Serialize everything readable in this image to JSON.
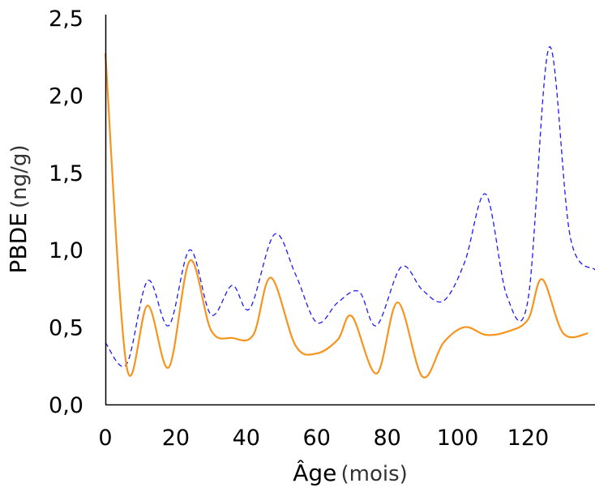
{
  "chart_data": {
    "type": "line",
    "title": "",
    "xlabel": "Âge",
    "xlabel_unit": "(mois)",
    "ylabel": "PBDE",
    "ylabel_unit": "(ng/g)",
    "xlim": [
      0,
      139
    ],
    "ylim": [
      0,
      2.5
    ],
    "x_ticks": [
      0,
      20,
      40,
      60,
      80,
      100,
      120
    ],
    "x_tick_labels": [
      "0",
      "20",
      "40",
      "60",
      "80",
      "100",
      "120"
    ],
    "y_ticks": [
      0,
      0.5,
      1.0,
      1.5,
      2.0,
      2.5
    ],
    "y_tick_labels": [
      "0,0",
      "0,5",
      "1,0",
      "1,5",
      "2,0",
      "2,5"
    ],
    "grid": false,
    "legend": "none",
    "series": [
      {
        "name": "series-dashed-blue",
        "color": "#1a1aff",
        "style": "dashed",
        "x": [
          0,
          6,
          12,
          18,
          24,
          30,
          36,
          41,
          48,
          54,
          60,
          66,
          72,
          77,
          84,
          90,
          96,
          102,
          108,
          114,
          120,
          126,
          132,
          139
        ],
        "y": [
          0.4,
          0.26,
          0.8,
          0.51,
          1.0,
          0.58,
          0.77,
          0.62,
          1.1,
          0.84,
          0.53,
          0.66,
          0.73,
          0.51,
          0.89,
          0.74,
          0.67,
          0.92,
          1.36,
          0.7,
          0.68,
          2.31,
          1.08,
          0.87
        ]
      },
      {
        "name": "series-solid-orange",
        "color": "#f7941d",
        "style": "solid",
        "x": [
          0,
          6,
          12,
          18,
          24,
          30,
          36,
          42,
          47,
          54,
          60,
          66,
          70,
          77,
          83,
          90,
          96,
          102,
          108,
          114,
          120,
          124,
          130,
          137
        ],
        "y": [
          2.27,
          0.25,
          0.64,
          0.24,
          0.93,
          0.48,
          0.43,
          0.45,
          0.82,
          0.38,
          0.33,
          0.42,
          0.57,
          0.2,
          0.66,
          0.18,
          0.4,
          0.5,
          0.45,
          0.47,
          0.55,
          0.81,
          0.46,
          0.46
        ]
      }
    ]
  }
}
